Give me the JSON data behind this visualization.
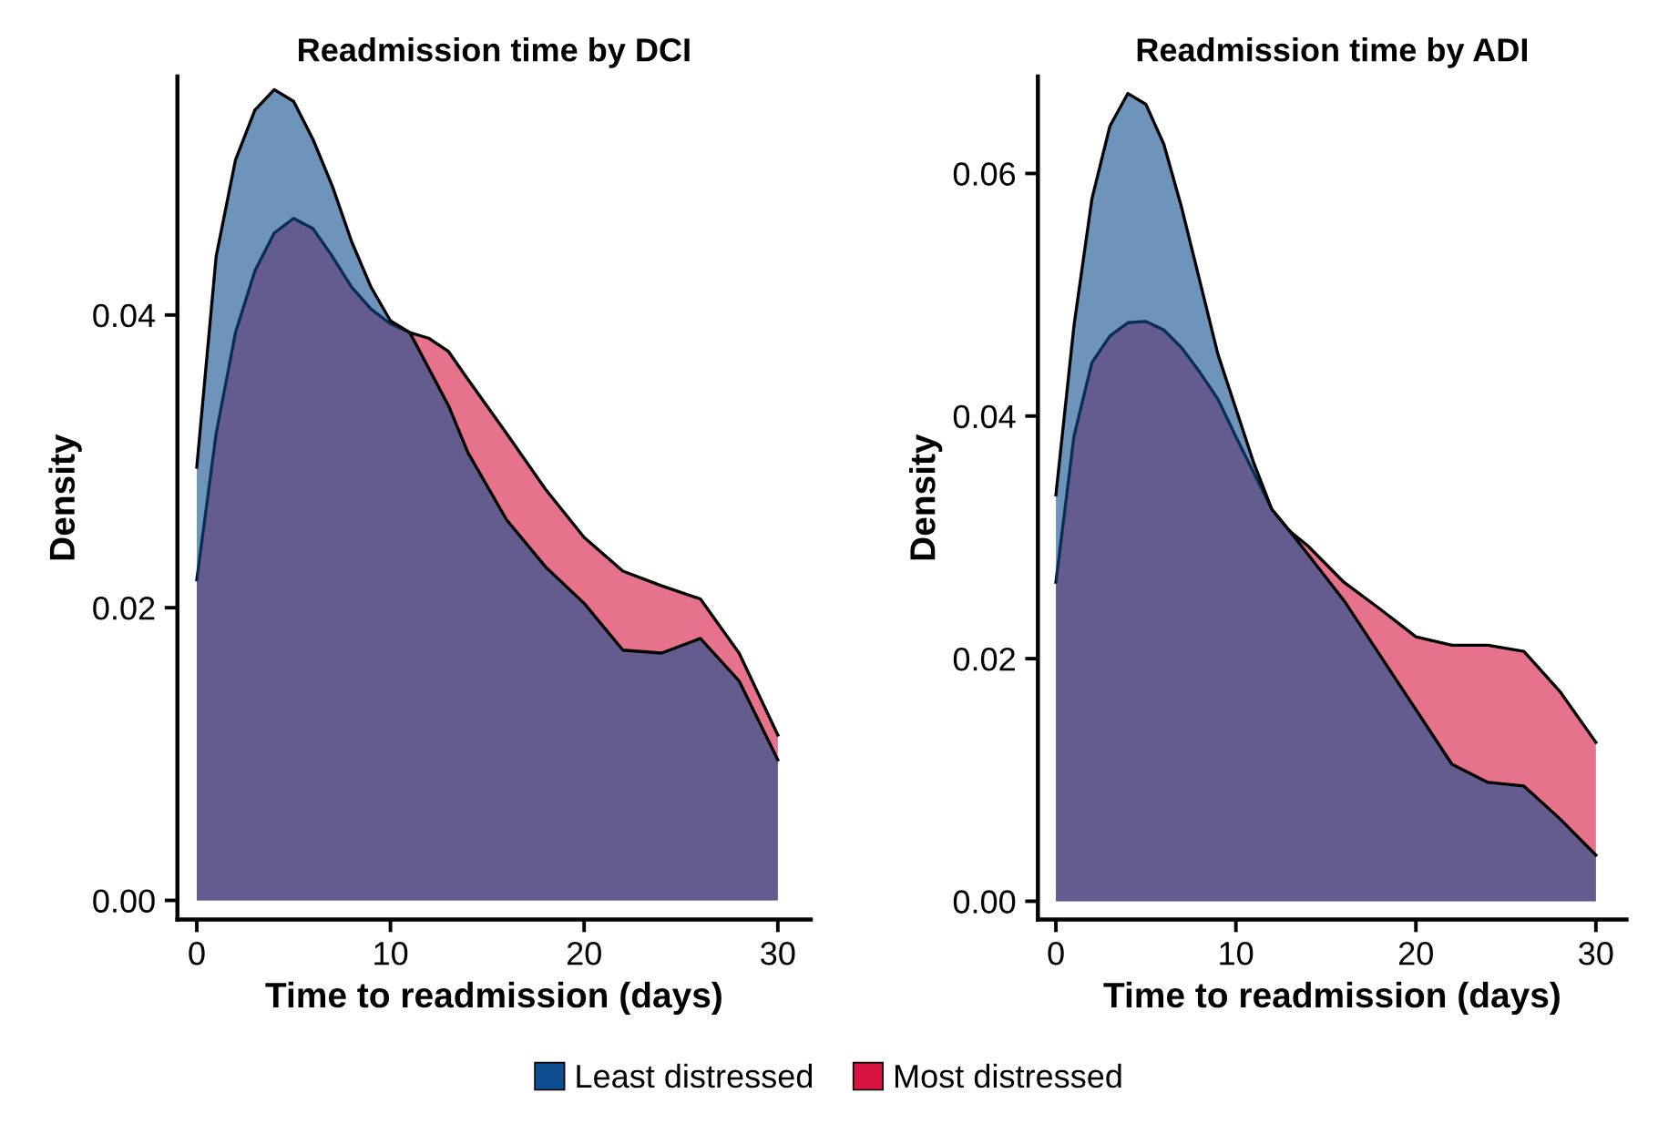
{
  "chart_data": [
    {
      "type": "area",
      "title": "Readmission time by DCI",
      "xlabel": "Time to readmission (days)",
      "ylabel": "Density",
      "x": [
        0,
        1,
        2,
        3,
        4,
        5,
        6,
        7,
        8,
        9,
        10,
        11,
        12,
        13,
        14,
        16,
        18,
        20,
        22,
        24,
        26,
        28,
        30
      ],
      "series": [
        {
          "name": "Least distressed",
          "color": "#0e4d8f",
          "values": [
            0.0296,
            0.044,
            0.0506,
            0.054,
            0.0554,
            0.0546,
            0.052,
            0.0488,
            0.045,
            0.0419,
            0.0396,
            0.0388,
            0.0363,
            0.0338,
            0.0306,
            0.026,
            0.0228,
            0.0203,
            0.0171,
            0.0169,
            0.0179,
            0.015,
            0.0096
          ]
        },
        {
          "name": "Most distressed",
          "color": "#d6143f",
          "values": [
            0.0219,
            0.0319,
            0.0388,
            0.043,
            0.0456,
            0.0466,
            0.0459,
            0.044,
            0.0419,
            0.0404,
            0.0394,
            0.0388,
            0.0384,
            0.0375,
            0.0356,
            0.0319,
            0.0281,
            0.0248,
            0.0225,
            0.0215,
            0.0206,
            0.0169,
            0.0113
          ]
        }
      ],
      "xlim": [
        -1,
        31.7
      ],
      "ylim": [
        -0.0013,
        0.0563
      ],
      "xticks": [
        0,
        10,
        20,
        30
      ],
      "yticks": [
        {
          "value": 0,
          "label": "0.00"
        },
        {
          "value": 0.02,
          "label": "0.02"
        },
        {
          "value": 0.04,
          "label": "0.04"
        }
      ],
      "grid": false,
      "legend": "bottom"
    },
    {
      "type": "area",
      "title": "Readmission time by ADI",
      "xlabel": "Time to readmission (days)",
      "ylabel": "Density",
      "x": [
        0,
        1,
        2,
        3,
        4,
        5,
        6,
        7,
        8,
        9,
        10,
        11,
        12,
        13,
        14,
        16,
        18,
        20,
        22,
        24,
        26,
        28,
        30
      ],
      "series": [
        {
          "color": "#0e4d8f",
          "values": [
            0.0335,
            0.0474,
            0.0579,
            0.0639,
            0.0666,
            0.0657,
            0.0624,
            0.0571,
            0.0511,
            0.0451,
            0.0406,
            0.0361,
            0.0323,
            0.0305,
            0.0286,
            0.0248,
            0.0203,
            0.0158,
            0.0113,
            0.0098,
            0.0095,
            0.0068,
            0.0038
          ]
        },
        {
          "color": "#d6143f",
          "values": [
            0.0263,
            0.0383,
            0.0444,
            0.0466,
            0.0477,
            0.0478,
            0.0471,
            0.0456,
            0.0436,
            0.0414,
            0.0383,
            0.0353,
            0.0323,
            0.0305,
            0.0293,
            0.0263,
            0.0241,
            0.0218,
            0.0211,
            0.0211,
            0.0206,
            0.0173,
            0.0131
          ]
        }
      ],
      "xlim": [
        -1,
        31.7
      ],
      "ylim": [
        -0.0015,
        0.068
      ],
      "xticks": [
        0,
        10,
        20,
        30
      ],
      "yticks": [
        {
          "value": 0,
          "label": "0.00"
        },
        {
          "value": 0.02,
          "label": "0.02"
        },
        {
          "value": 0.04,
          "label": "0.04"
        },
        {
          "value": 0.06,
          "label": "0.06"
        }
      ],
      "grid": false
    }
  ]
}
